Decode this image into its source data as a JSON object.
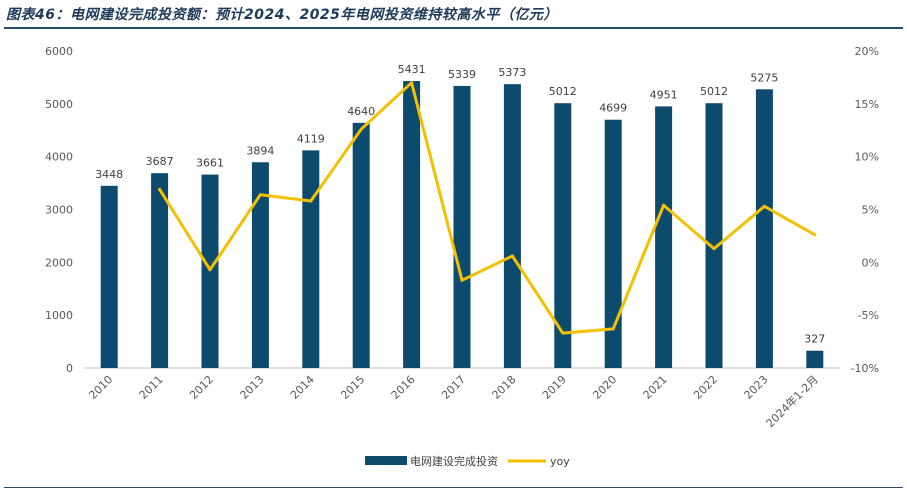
{
  "title": "图表46：电网建设完成投资额：预计2024、2025年电网投资维持较高水平（亿元）",
  "colors": {
    "bar": "#0c4a6e",
    "line": "#f5c000",
    "title": "#1f3b5a"
  },
  "chart_data": {
    "type": "bar",
    "categories": [
      "2010",
      "2011",
      "2012",
      "2013",
      "2014",
      "2015",
      "2016",
      "2017",
      "2018",
      "2019",
      "2020",
      "2021",
      "2022",
      "2023",
      "2024年1-2月"
    ],
    "series": [
      {
        "name": "电网建设完成投资",
        "type": "bar",
        "axis": "left",
        "values": [
          3448,
          3687,
          3661,
          3894,
          4119,
          4640,
          5431,
          5339,
          5373,
          5012,
          4699,
          4951,
          5012,
          5275,
          327
        ]
      },
      {
        "name": "yoy",
        "type": "line",
        "axis": "right",
        "values": [
          null,
          6.9,
          -0.7,
          6.4,
          5.8,
          12.6,
          17.0,
          -1.7,
          0.6,
          -6.7,
          -6.3,
          5.4,
          1.3,
          5.3,
          2.6
        ]
      }
    ],
    "y_left": {
      "min": 0,
      "max": 6000,
      "ticks": [
        0,
        1000,
        2000,
        3000,
        4000,
        5000,
        6000
      ]
    },
    "y_right": {
      "min": -10,
      "max": 20,
      "ticks": [
        "-10%",
        "-5%",
        "0%",
        "5%",
        "10%",
        "15%",
        "20%"
      ]
    },
    "legend": {
      "position": "bottom",
      "items": [
        "电网建设完成投资",
        "yoy"
      ]
    },
    "grid": false
  }
}
